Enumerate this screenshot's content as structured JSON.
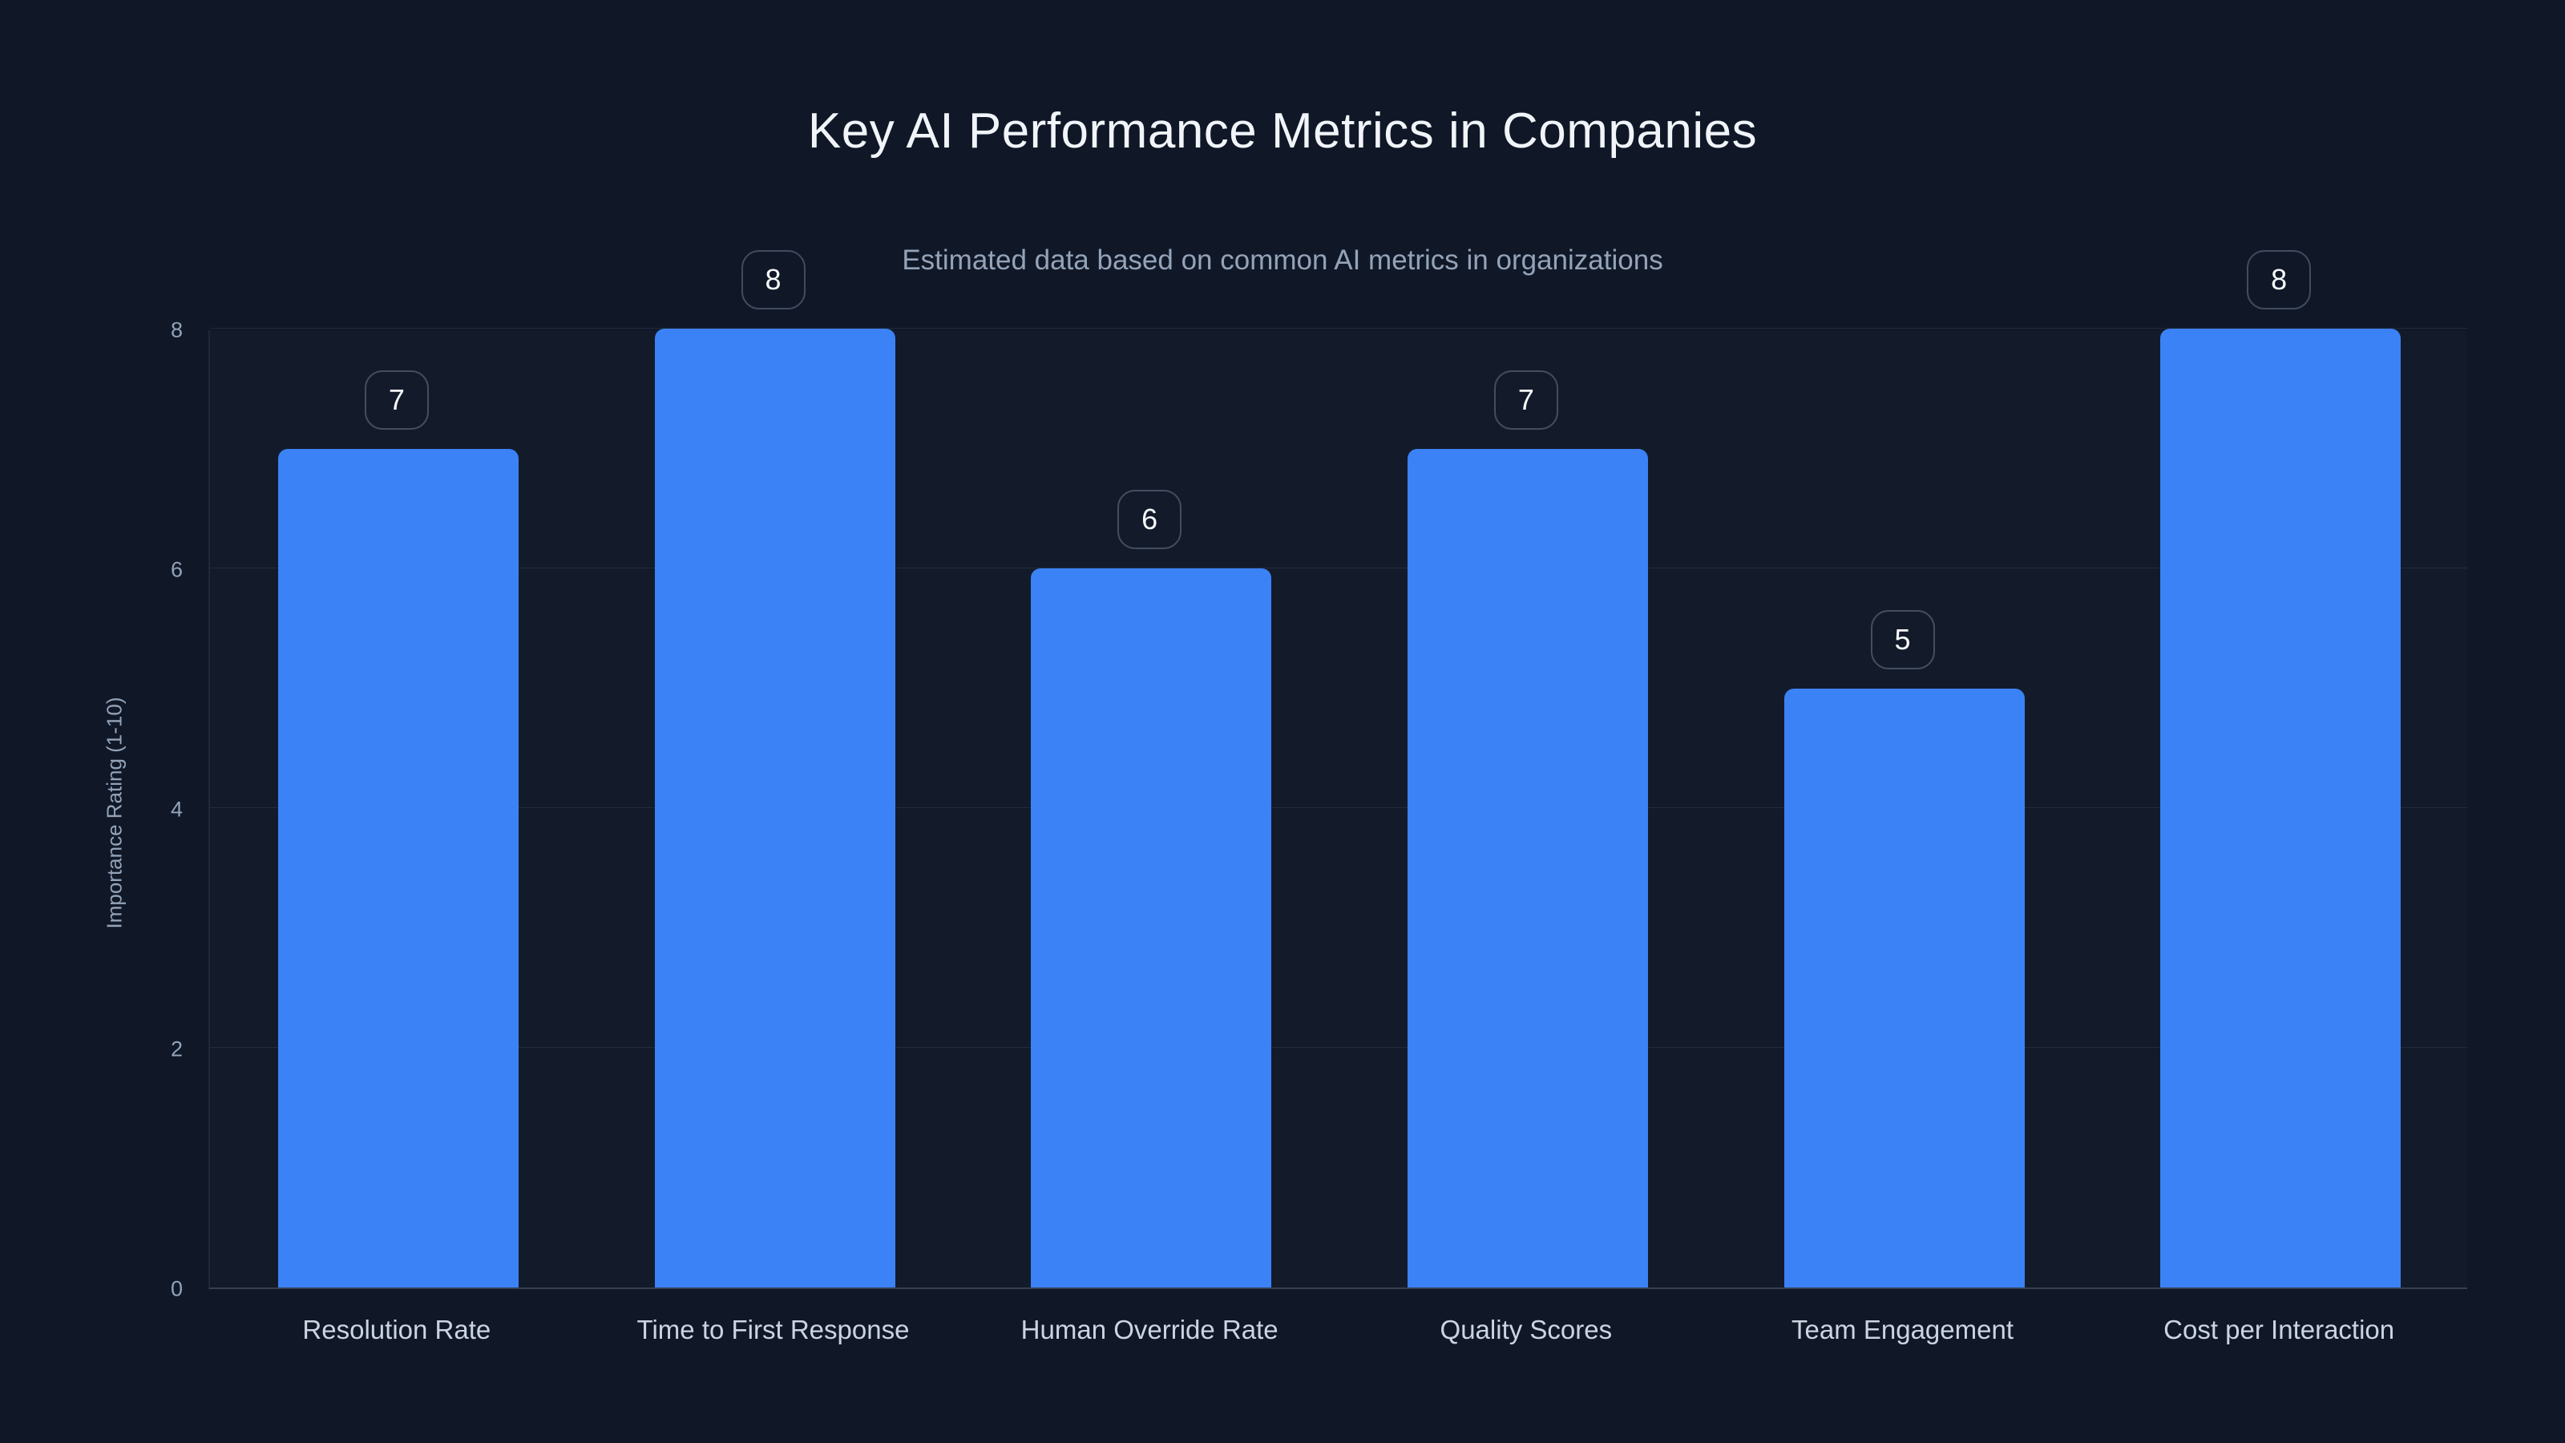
{
  "page": {
    "background_color": "#101828"
  },
  "chart_data": {
    "type": "bar",
    "title": "Key AI Performance Metrics in Companies",
    "subtitle": "Estimated data based on common AI metrics in organizations",
    "categories": [
      "Resolution Rate",
      "Time to First Response",
      "Human Override Rate",
      "Quality Scores",
      "Team Engagement",
      "Cost per Interaction"
    ],
    "values": [
      7,
      8,
      6,
      7,
      5,
      8
    ],
    "value_labels": [
      "7",
      "8",
      "6",
      "7",
      "5",
      "8"
    ],
    "xlabel": "",
    "ylabel": "Importance Rating (1-10)",
    "ylim": [
      0,
      8
    ],
    "yticks": [
      0,
      2,
      4,
      6,
      8
    ],
    "grid": true,
    "legend": false,
    "bar_color": "#3b82f6",
    "title_color": "#f1f5f9",
    "subtitle_color": "#94a3b8"
  }
}
